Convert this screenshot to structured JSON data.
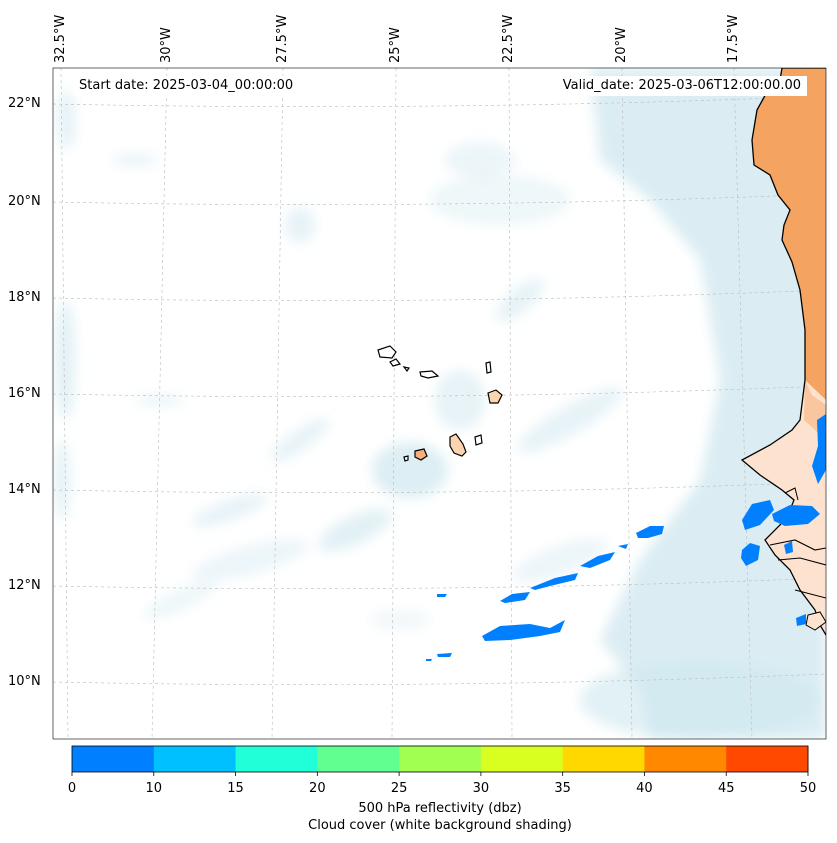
{
  "map": {
    "start_date": "Start date: 2025-03-04_00:00:00",
    "valid_date": "Valid_date: 2025-03-06T12:00:00.00",
    "lon_labels": [
      "32.5°W",
      "30°W",
      "27.5°W",
      "25°W",
      "22.5°W",
      "20°W",
      "17.5°W"
    ],
    "lat_labels": [
      "22°N",
      "20°N",
      "18°N",
      "16°N",
      "14°N",
      "12°N",
      "10°N"
    ],
    "colors": {
      "land": "#f4a460",
      "land_light": "#fde3cf",
      "cloud": "#cfe7ef",
      "reflectivity_low": "#0080ff",
      "gridline": "#bbbbbb"
    },
    "features": {
      "islands": "Cape Verde islands",
      "coast": "West African coastline"
    }
  },
  "colorbar": {
    "ticks": [
      "0",
      "10",
      "15",
      "20",
      "25",
      "30",
      "35",
      "40",
      "45",
      "50"
    ],
    "colors": [
      "#0080ff",
      "#00c0ff",
      "#20ffd8",
      "#60ff90",
      "#a0ff50",
      "#d8ff20",
      "#ffd800",
      "#ff8800",
      "#ff4800"
    ],
    "label_line1": "500 hPa reflectivity (dbz)",
    "label_line2": "Cloud cover (white background shading)"
  }
}
